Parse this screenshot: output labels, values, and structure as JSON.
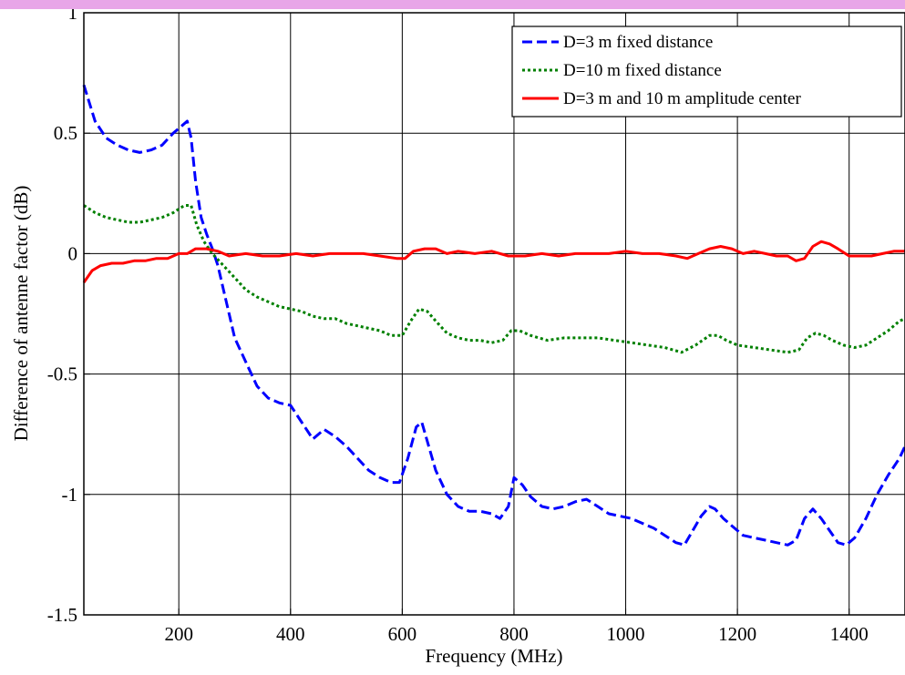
{
  "chart_data": {
    "type": "line",
    "title": "",
    "xlabel": "Frequency (MHz)",
    "ylabel": "Difference of antenne factor (dB)",
    "xlim": [
      30,
      1500
    ],
    "ylim": [
      -1.5,
      1
    ],
    "xticks": [
      200,
      400,
      600,
      800,
      1000,
      1200,
      1400
    ],
    "xtick_labels": [
      "200",
      "400",
      "600",
      "800",
      "1000",
      "1200",
      "1400"
    ],
    "yticks": [
      -1.5,
      -1,
      -0.5,
      0,
      0.5,
      1
    ],
    "ytick_labels": [
      "-1.5",
      "-1",
      "-0.5",
      "0",
      "0.5",
      "1"
    ],
    "grid": true,
    "legend_position": "top-right",
    "series": [
      {
        "name": "D=3 m fixed distance",
        "color": "#0000ff",
        "dash": "dashed",
        "x": [
          30,
          50,
          70,
          90,
          110,
          130,
          150,
          170,
          190,
          205,
          215,
          222,
          230,
          240,
          250,
          260,
          270,
          280,
          290,
          300,
          320,
          340,
          360,
          380,
          400,
          420,
          440,
          460,
          480,
          500,
          520,
          540,
          560,
          580,
          595,
          610,
          625,
          635,
          645,
          660,
          680,
          700,
          720,
          740,
          760,
          775,
          790,
          800,
          815,
          830,
          850,
          870,
          890,
          910,
          930,
          950,
          970,
          990,
          1010,
          1030,
          1050,
          1070,
          1090,
          1105,
          1120,
          1135,
          1150,
          1160,
          1175,
          1190,
          1210,
          1230,
          1250,
          1270,
          1290,
          1305,
          1320,
          1335,
          1350,
          1365,
          1380,
          1395,
          1410,
          1430,
          1450,
          1470,
          1490,
          1500
        ],
        "y": [
          0.7,
          0.55,
          0.48,
          0.45,
          0.43,
          0.42,
          0.43,
          0.45,
          0.5,
          0.53,
          0.55,
          0.48,
          0.3,
          0.15,
          0.08,
          0.02,
          -0.05,
          -0.15,
          -0.25,
          -0.35,
          -0.45,
          -0.55,
          -0.6,
          -0.62,
          -0.63,
          -0.7,
          -0.77,
          -0.73,
          -0.76,
          -0.8,
          -0.85,
          -0.9,
          -0.93,
          -0.95,
          -0.95,
          -0.85,
          -0.72,
          -0.7,
          -0.78,
          -0.9,
          -1.0,
          -1.05,
          -1.07,
          -1.07,
          -1.08,
          -1.1,
          -1.05,
          -0.93,
          -0.96,
          -1.01,
          -1.05,
          -1.06,
          -1.05,
          -1.03,
          -1.02,
          -1.05,
          -1.08,
          -1.09,
          -1.1,
          -1.12,
          -1.14,
          -1.17,
          -1.2,
          -1.21,
          -1.15,
          -1.09,
          -1.05,
          -1.06,
          -1.1,
          -1.13,
          -1.17,
          -1.18,
          -1.19,
          -1.2,
          -1.21,
          -1.19,
          -1.1,
          -1.06,
          -1.1,
          -1.15,
          -1.2,
          -1.21,
          -1.18,
          -1.1,
          -1.0,
          -0.92,
          -0.85,
          -0.8
        ]
      },
      {
        "name": "D=10 m  fixed distance",
        "color": "#008000",
        "dash": "dotted",
        "x": [
          30,
          50,
          70,
          90,
          110,
          130,
          150,
          170,
          190,
          210,
          222,
          232,
          245,
          260,
          280,
          300,
          320,
          340,
          360,
          380,
          400,
          420,
          440,
          460,
          480,
          500,
          520,
          540,
          560,
          580,
          600,
          615,
          630,
          645,
          660,
          680,
          700,
          720,
          740,
          760,
          780,
          795,
          810,
          830,
          860,
          890,
          920,
          950,
          980,
          1010,
          1040,
          1070,
          1100,
          1125,
          1150,
          1165,
          1180,
          1200,
          1230,
          1260,
          1290,
          1310,
          1325,
          1340,
          1355,
          1370,
          1390,
          1410,
          1430,
          1450,
          1470,
          1490,
          1500
        ],
        "y": [
          0.2,
          0.17,
          0.15,
          0.14,
          0.13,
          0.13,
          0.14,
          0.15,
          0.17,
          0.2,
          0.2,
          0.12,
          0.05,
          0.0,
          -0.05,
          -0.1,
          -0.15,
          -0.18,
          -0.2,
          -0.22,
          -0.23,
          -0.24,
          -0.26,
          -0.27,
          -0.27,
          -0.29,
          -0.3,
          -0.31,
          -0.32,
          -0.34,
          -0.34,
          -0.28,
          -0.23,
          -0.24,
          -0.28,
          -0.33,
          -0.35,
          -0.36,
          -0.36,
          -0.37,
          -0.36,
          -0.32,
          -0.32,
          -0.34,
          -0.36,
          -0.35,
          -0.35,
          -0.35,
          -0.36,
          -0.37,
          -0.38,
          -0.39,
          -0.41,
          -0.38,
          -0.34,
          -0.34,
          -0.36,
          -0.38,
          -0.39,
          -0.4,
          -0.41,
          -0.4,
          -0.35,
          -0.33,
          -0.34,
          -0.36,
          -0.38,
          -0.39,
          -0.38,
          -0.35,
          -0.32,
          -0.28,
          -0.27
        ]
      },
      {
        "name": "D=3 m and 10 m amplitude center",
        "color": "#ff0000",
        "dash": "solid",
        "x": [
          30,
          45,
          60,
          80,
          100,
          120,
          140,
          160,
          180,
          200,
          215,
          230,
          250,
          270,
          290,
          320,
          350,
          380,
          410,
          440,
          470,
          500,
          530,
          560,
          590,
          605,
          620,
          640,
          660,
          680,
          700,
          730,
          760,
          790,
          820,
          850,
          880,
          910,
          940,
          970,
          1000,
          1030,
          1060,
          1090,
          1110,
          1130,
          1150,
          1170,
          1190,
          1210,
          1230,
          1250,
          1270,
          1290,
          1305,
          1320,
          1335,
          1350,
          1365,
          1380,
          1400,
          1420,
          1440,
          1460,
          1480,
          1500
        ],
        "y": [
          -0.12,
          -0.07,
          -0.05,
          -0.04,
          -0.04,
          -0.03,
          -0.03,
          -0.02,
          -0.02,
          0.0,
          0.0,
          0.02,
          0.02,
          0.01,
          -0.01,
          0.0,
          -0.01,
          -0.01,
          0.0,
          -0.01,
          0.0,
          0.0,
          0.0,
          -0.01,
          -0.02,
          -0.02,
          0.01,
          0.02,
          0.02,
          0.0,
          0.01,
          0.0,
          0.01,
          -0.01,
          -0.01,
          0.0,
          -0.01,
          0.0,
          0.0,
          0.0,
          0.01,
          0.0,
          0.0,
          -0.01,
          -0.02,
          0.0,
          0.02,
          0.03,
          0.02,
          0.0,
          0.01,
          0.0,
          -0.01,
          -0.01,
          -0.03,
          -0.02,
          0.03,
          0.05,
          0.04,
          0.02,
          -0.01,
          -0.01,
          -0.01,
          0.0,
          0.01,
          0.01
        ]
      }
    ]
  }
}
